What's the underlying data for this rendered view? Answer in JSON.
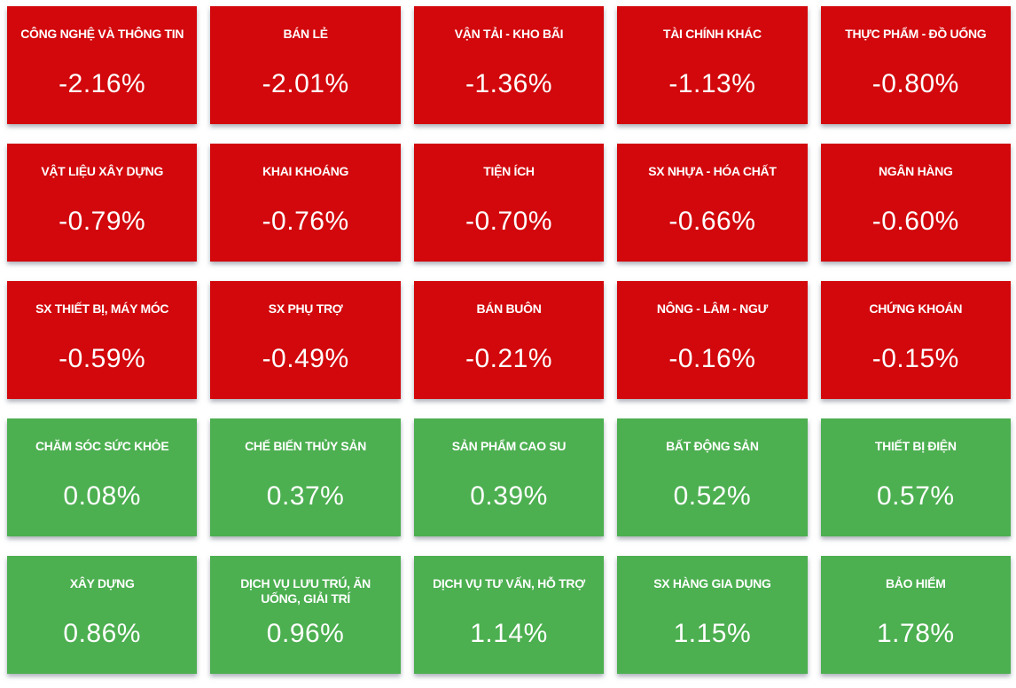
{
  "colors": {
    "negative": "#d2080c",
    "positive": "#4caf50",
    "text": "#ffffff",
    "background": "#ffffff"
  },
  "sector_grid": {
    "columns": 5,
    "tiles": [
      {
        "label": "CÔNG NGHỆ VÀ THÔNG TIN",
        "value": "-2.16%",
        "direction": "down"
      },
      {
        "label": "BÁN LẺ",
        "value": "-2.01%",
        "direction": "down"
      },
      {
        "label": "VẬN TẢI - KHO BÃI",
        "value": "-1.36%",
        "direction": "down"
      },
      {
        "label": "TÀI CHÍNH KHÁC",
        "value": "-1.13%",
        "direction": "down"
      },
      {
        "label": "THỰC PHẨM - ĐỒ UỐNG",
        "value": "-0.80%",
        "direction": "down"
      },
      {
        "label": "VẬT LIỆU XÂY DỰNG",
        "value": "-0.79%",
        "direction": "down"
      },
      {
        "label": "KHAI KHOÁNG",
        "value": "-0.76%",
        "direction": "down"
      },
      {
        "label": "TIỆN ÍCH",
        "value": "-0.70%",
        "direction": "down"
      },
      {
        "label": "SX NHỰA - HÓA CHẤT",
        "value": "-0.66%",
        "direction": "down"
      },
      {
        "label": "NGÂN HÀNG",
        "value": "-0.60%",
        "direction": "down"
      },
      {
        "label": "SX THIẾT BỊ, MÁY MÓC",
        "value": "-0.59%",
        "direction": "down"
      },
      {
        "label": "SX PHỤ TRỢ",
        "value": "-0.49%",
        "direction": "down"
      },
      {
        "label": "BÁN BUÔN",
        "value": "-0.21%",
        "direction": "down"
      },
      {
        "label": "NÔNG - LÂM - NGƯ",
        "value": "-0.16%",
        "direction": "down"
      },
      {
        "label": "CHỨNG KHOÁN",
        "value": "-0.15%",
        "direction": "down"
      },
      {
        "label": "CHĂM SÓC SỨC KHỎE",
        "value": "0.08%",
        "direction": "up"
      },
      {
        "label": "CHẾ BIẾN THỦY SẢN",
        "value": "0.37%",
        "direction": "up"
      },
      {
        "label": "SẢN PHẨM CAO SU",
        "value": "0.39%",
        "direction": "up"
      },
      {
        "label": "BẤT ĐỘNG SẢN",
        "value": "0.52%",
        "direction": "up"
      },
      {
        "label": "THIẾT BỊ ĐIỆN",
        "value": "0.57%",
        "direction": "up"
      },
      {
        "label": "XÂY DỰNG",
        "value": "0.86%",
        "direction": "up"
      },
      {
        "label": "DỊCH VỤ LƯU TRÚ, ĂN UỐNG, GIẢI TRÍ",
        "value": "0.96%",
        "direction": "up"
      },
      {
        "label": "DỊCH VỤ TƯ VẤN, HỖ TRỢ",
        "value": "1.14%",
        "direction": "up"
      },
      {
        "label": "SX HÀNG GIA DỤNG",
        "value": "1.15%",
        "direction": "up"
      },
      {
        "label": "BẢO HIỂM",
        "value": "1.78%",
        "direction": "up"
      }
    ]
  },
  "chart_data": {
    "type": "heatmap",
    "title": "",
    "unit": "%",
    "layout": {
      "rows": 5,
      "columns": 5,
      "order": "row-major"
    },
    "categories": [
      "CÔNG NGHỆ VÀ THÔNG TIN",
      "BÁN LẺ",
      "VẬN TẢI - KHO BÃI",
      "TÀI CHÍNH KHÁC",
      "THỰC PHẨM - ĐỒ UỐNG",
      "VẬT LIỆU XÂY DỰNG",
      "KHAI KHOÁNG",
      "TIỆN ÍCH",
      "SX NHỰA - HÓA CHẤT",
      "NGÂN HÀNG",
      "SX THIẾT BỊ, MÁY MÓC",
      "SX PHỤ TRỢ",
      "BÁN BUÔN",
      "NÔNG - LÂM - NGƯ",
      "CHỨNG KHOÁN",
      "CHĂM SÓC SỨC KHỎE",
      "CHẾ BIẾN THỦY SẢN",
      "SẢN PHẨM CAO SU",
      "BẤT ĐỘNG SẢN",
      "THIẾT BỊ ĐIỆN",
      "XÂY DỰNG",
      "DỊCH VỤ LƯU TRÚ, ĂN UỐNG, GIẢI TRÍ",
      "DỊCH VỤ TƯ VẤN, HỖ TRỢ",
      "SX HÀNG GIA DỤNG",
      "BẢO HIỂM"
    ],
    "values": [
      -2.16,
      -2.01,
      -1.36,
      -1.13,
      -0.8,
      -0.79,
      -0.76,
      -0.7,
      -0.66,
      -0.6,
      -0.59,
      -0.49,
      -0.21,
      -0.16,
      -0.15,
      0.08,
      0.37,
      0.39,
      0.52,
      0.57,
      0.86,
      0.96,
      1.14,
      1.15,
      1.78
    ],
    "negative_color": "#d2080c",
    "positive_color": "#4caf50"
  }
}
